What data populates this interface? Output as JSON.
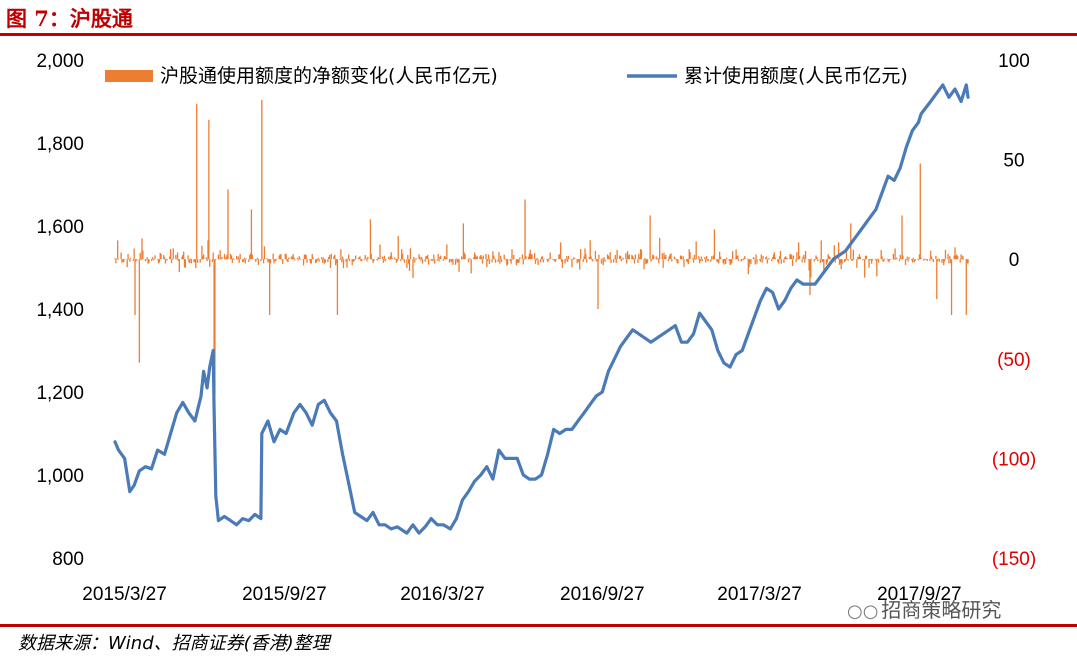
{
  "figure_title": "图 7：沪股通",
  "source_note": "数据来源：Wind、招商证券(香港)整理",
  "watermark": {
    "icon": "wechat-icon",
    "text": "招商策略研究"
  },
  "colors": {
    "bar": "#ed7d31",
    "line": "#4a7ab7",
    "negative_label": "#e00000",
    "rule": "#c00000"
  },
  "chart_data": {
    "type": "bar+line",
    "legend_position": "top",
    "grid": false,
    "y_left": {
      "ticks": [
        "2,000",
        "1,800",
        "1,600",
        "1,400",
        "1,200",
        "1,000",
        "800"
      ],
      "range": [
        800,
        2000
      ]
    },
    "y_right": {
      "ticks": [
        "100",
        "50",
        "0",
        "(50)",
        "(100)",
        "(150)"
      ],
      "range": [
        -150,
        100
      ],
      "negative_color": "#e00000"
    },
    "x_ticks": [
      "2015/3/27",
      "2015/9/27",
      "2016/3/27",
      "2016/9/27",
      "2017/3/27",
      "2017/9/27"
    ],
    "x_range": [
      "2015-03-16",
      "2017-11-22"
    ],
    "series": [
      {
        "name": "沪股通使用额度的净额变化(人民币亿元)",
        "type": "bar",
        "axis": "right",
        "approx_daily_range": [
          -85,
          80
        ],
        "spikes": [
          {
            "date": "2015-04-13",
            "value": -52
          },
          {
            "date": "2015-04-08",
            "value": -28
          },
          {
            "date": "2015-06-18",
            "value": 78
          },
          {
            "date": "2015-07-02",
            "value": 70
          },
          {
            "date": "2015-07-08",
            "value": -82
          },
          {
            "date": "2015-07-09",
            "value": -68
          },
          {
            "date": "2015-07-24",
            "value": 35
          },
          {
            "date": "2015-08-20",
            "value": 25
          },
          {
            "date": "2015-09-01",
            "value": 80
          },
          {
            "date": "2015-09-10",
            "value": -28
          },
          {
            "date": "2015-11-27",
            "value": -28
          },
          {
            "date": "2016-01-04",
            "value": 20
          },
          {
            "date": "2016-04-20",
            "value": 18
          },
          {
            "date": "2016-06-30",
            "value": 30
          },
          {
            "date": "2016-09-22",
            "value": -25
          },
          {
            "date": "2016-11-21",
            "value": 22
          },
          {
            "date": "2017-02-03",
            "value": 15
          },
          {
            "date": "2017-05-24",
            "value": -18
          },
          {
            "date": "2017-07-10",
            "value": 18
          },
          {
            "date": "2017-09-07",
            "value": 22
          },
          {
            "date": "2017-09-28",
            "value": 48
          },
          {
            "date": "2017-10-17",
            "value": -20
          },
          {
            "date": "2017-11-03",
            "value": -28
          },
          {
            "date": "2017-11-20",
            "value": -28
          }
        ]
      },
      {
        "name": "累计使用额度(人民币亿元)",
        "type": "line",
        "axis": "left",
        "points": [
          [
            "2015-03-16",
            1080
          ],
          [
            "2015-03-20",
            1060
          ],
          [
            "2015-03-27",
            1040
          ],
          [
            "2015-04-02",
            960
          ],
          [
            "2015-04-07",
            975
          ],
          [
            "2015-04-13",
            1010
          ],
          [
            "2015-04-20",
            1020
          ],
          [
            "2015-04-27",
            1015
          ],
          [
            "2015-05-04",
            1060
          ],
          [
            "2015-05-12",
            1050
          ],
          [
            "2015-05-19",
            1100
          ],
          [
            "2015-05-26",
            1150
          ],
          [
            "2015-06-02",
            1175
          ],
          [
            "2015-06-09",
            1150
          ],
          [
            "2015-06-16",
            1130
          ],
          [
            "2015-06-23",
            1190
          ],
          [
            "2015-06-26",
            1250
          ],
          [
            "2015-06-30",
            1210
          ],
          [
            "2015-07-03",
            1260
          ],
          [
            "2015-07-07",
            1300
          ],
          [
            "2015-07-08",
            1170
          ],
          [
            "2015-07-10",
            950
          ],
          [
            "2015-07-13",
            890
          ],
          [
            "2015-07-20",
            900
          ],
          [
            "2015-07-27",
            890
          ],
          [
            "2015-08-03",
            880
          ],
          [
            "2015-08-10",
            895
          ],
          [
            "2015-08-17",
            890
          ],
          [
            "2015-08-24",
            905
          ],
          [
            "2015-08-31",
            895
          ],
          [
            "2015-09-01",
            1100
          ],
          [
            "2015-09-08",
            1130
          ],
          [
            "2015-09-15",
            1080
          ],
          [
            "2015-09-22",
            1110
          ],
          [
            "2015-09-29",
            1100
          ],
          [
            "2015-10-08",
            1150
          ],
          [
            "2015-10-15",
            1170
          ],
          [
            "2015-10-22",
            1150
          ],
          [
            "2015-10-29",
            1120
          ],
          [
            "2015-11-05",
            1170
          ],
          [
            "2015-11-12",
            1180
          ],
          [
            "2015-11-19",
            1150
          ],
          [
            "2015-11-26",
            1130
          ],
          [
            "2015-12-03",
            1050
          ],
          [
            "2015-12-10",
            980
          ],
          [
            "2015-12-17",
            910
          ],
          [
            "2015-12-24",
            900
          ],
          [
            "2015-12-31",
            890
          ],
          [
            "2016-01-07",
            910
          ],
          [
            "2016-01-14",
            880
          ],
          [
            "2016-01-21",
            880
          ],
          [
            "2016-01-28",
            870
          ],
          [
            "2016-02-04",
            875
          ],
          [
            "2016-02-15",
            860
          ],
          [
            "2016-02-22",
            880
          ],
          [
            "2016-02-29",
            860
          ],
          [
            "2016-03-07",
            875
          ],
          [
            "2016-03-14",
            895
          ],
          [
            "2016-03-21",
            880
          ],
          [
            "2016-03-28",
            880
          ],
          [
            "2016-04-05",
            870
          ],
          [
            "2016-04-12",
            895
          ],
          [
            "2016-04-19",
            940
          ],
          [
            "2016-04-26",
            960
          ],
          [
            "2016-05-03",
            985
          ],
          [
            "2016-05-10",
            1000
          ],
          [
            "2016-05-17",
            1020
          ],
          [
            "2016-05-24",
            990
          ],
          [
            "2016-05-31",
            1060
          ],
          [
            "2016-06-07",
            1040
          ],
          [
            "2016-06-14",
            1040
          ],
          [
            "2016-06-21",
            1040
          ],
          [
            "2016-06-28",
            1000
          ],
          [
            "2016-07-05",
            990
          ],
          [
            "2016-07-12",
            990
          ],
          [
            "2016-07-19",
            1000
          ],
          [
            "2016-07-26",
            1050
          ],
          [
            "2016-08-02",
            1110
          ],
          [
            "2016-08-09",
            1100
          ],
          [
            "2016-08-16",
            1110
          ],
          [
            "2016-08-23",
            1110
          ],
          [
            "2016-08-30",
            1130
          ],
          [
            "2016-09-06",
            1150
          ],
          [
            "2016-09-13",
            1170
          ],
          [
            "2016-09-20",
            1190
          ],
          [
            "2016-09-27",
            1200
          ],
          [
            "2016-10-04",
            1250
          ],
          [
            "2016-10-11",
            1280
          ],
          [
            "2016-10-18",
            1310
          ],
          [
            "2016-10-25",
            1330
          ],
          [
            "2016-11-01",
            1350
          ],
          [
            "2016-11-08",
            1340
          ],
          [
            "2016-11-15",
            1330
          ],
          [
            "2016-11-22",
            1320
          ],
          [
            "2016-11-29",
            1330
          ],
          [
            "2016-12-06",
            1340
          ],
          [
            "2016-12-13",
            1350
          ],
          [
            "2016-12-20",
            1360
          ],
          [
            "2016-12-27",
            1320
          ],
          [
            "2017-01-03",
            1320
          ],
          [
            "2017-01-10",
            1340
          ],
          [
            "2017-01-17",
            1390
          ],
          [
            "2017-01-24",
            1370
          ],
          [
            "2017-01-31",
            1350
          ],
          [
            "2017-02-07",
            1300
          ],
          [
            "2017-02-14",
            1270
          ],
          [
            "2017-02-21",
            1260
          ],
          [
            "2017-02-28",
            1290
          ],
          [
            "2017-03-07",
            1300
          ],
          [
            "2017-03-14",
            1340
          ],
          [
            "2017-03-21",
            1380
          ],
          [
            "2017-03-28",
            1420
          ],
          [
            "2017-04-04",
            1450
          ],
          [
            "2017-04-11",
            1440
          ],
          [
            "2017-04-18",
            1400
          ],
          [
            "2017-04-25",
            1420
          ],
          [
            "2017-05-02",
            1450
          ],
          [
            "2017-05-09",
            1470
          ],
          [
            "2017-05-16",
            1460
          ],
          [
            "2017-05-23",
            1460
          ],
          [
            "2017-05-30",
            1460
          ],
          [
            "2017-06-06",
            1480
          ],
          [
            "2017-06-13",
            1500
          ],
          [
            "2017-06-20",
            1520
          ],
          [
            "2017-06-27",
            1530
          ],
          [
            "2017-07-04",
            1540
          ],
          [
            "2017-07-11",
            1560
          ],
          [
            "2017-07-18",
            1580
          ],
          [
            "2017-07-25",
            1600
          ],
          [
            "2017-08-01",
            1620
          ],
          [
            "2017-08-08",
            1640
          ],
          [
            "2017-08-15",
            1680
          ],
          [
            "2017-08-22",
            1720
          ],
          [
            "2017-08-29",
            1710
          ],
          [
            "2017-09-05",
            1740
          ],
          [
            "2017-09-12",
            1790
          ],
          [
            "2017-09-19",
            1830
          ],
          [
            "2017-09-26",
            1850
          ],
          [
            "2017-09-29",
            1870
          ],
          [
            "2017-10-10",
            1900
          ],
          [
            "2017-10-17",
            1920
          ],
          [
            "2017-10-24",
            1940
          ],
          [
            "2017-10-31",
            1910
          ],
          [
            "2017-11-07",
            1930
          ],
          [
            "2017-11-14",
            1900
          ],
          [
            "2017-11-20",
            1940
          ],
          [
            "2017-11-22",
            1910
          ]
        ]
      }
    ]
  }
}
